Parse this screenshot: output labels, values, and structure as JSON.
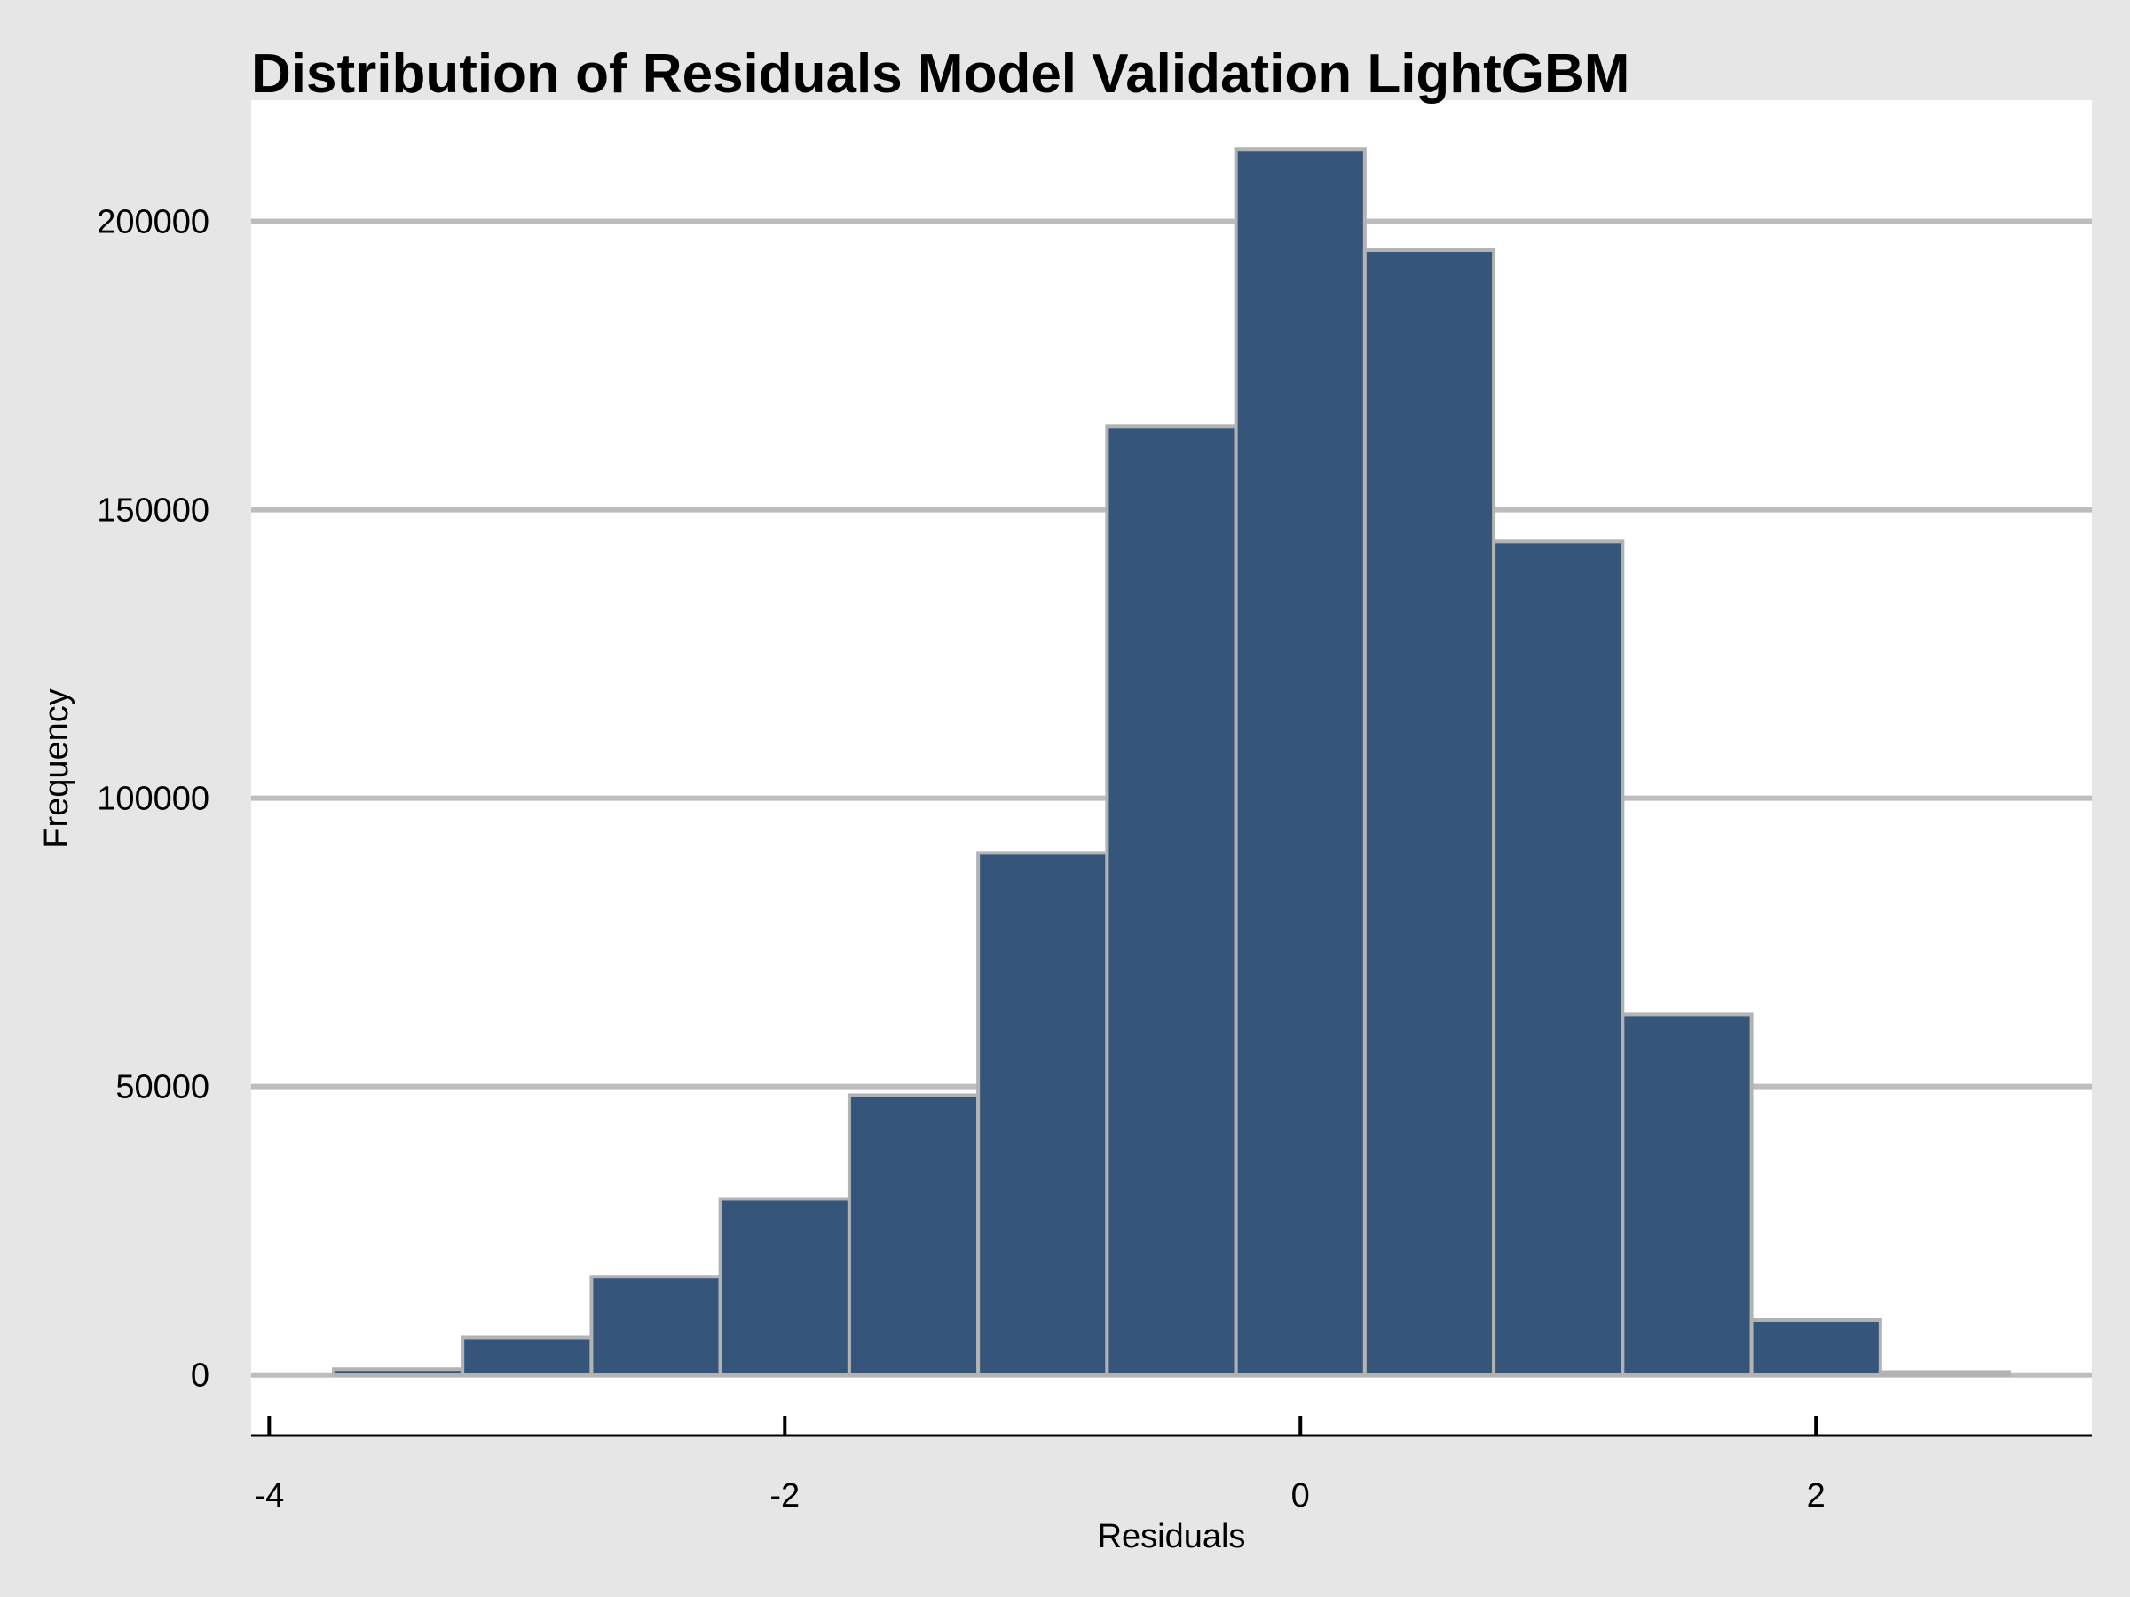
{
  "chart_data": {
    "type": "bar",
    "title": "Distribution of Residuals Model Validation LightGBM",
    "xlabel": "Residuals",
    "ylabel": "Frequency",
    "xlim": [
      -4.07,
      3.07
    ],
    "ylim": [
      -10500,
      221000
    ],
    "x_ticks": [
      -4,
      -2,
      0,
      2
    ],
    "x_tick_labels": [
      "-4",
      "-2",
      "0",
      "2"
    ],
    "y_ticks": [
      0,
      50000,
      100000,
      150000,
      200000
    ],
    "y_tick_labels": [
      "0",
      "50000",
      "100000",
      "150000",
      "200000"
    ],
    "grid": "horizontal",
    "bin_edges": [
      -3.75,
      -3.25,
      -2.75,
      -2.25,
      -1.75,
      -1.25,
      -0.75,
      -0.25,
      0.25,
      0.75,
      1.25,
      1.75,
      2.25,
      2.75
    ],
    "values": [
      1000,
      6500,
      17000,
      30500,
      48500,
      90500,
      164500,
      212500,
      195000,
      144500,
      62500,
      9500,
      500
    ],
    "colors": {
      "bar_fill": "#36557b",
      "bar_edge": "#b3b3b3",
      "grid": "#bdbdbd",
      "plot_background": "#ffffff",
      "figure_background": "#e6e6e6",
      "axis_line": "#000000"
    }
  }
}
